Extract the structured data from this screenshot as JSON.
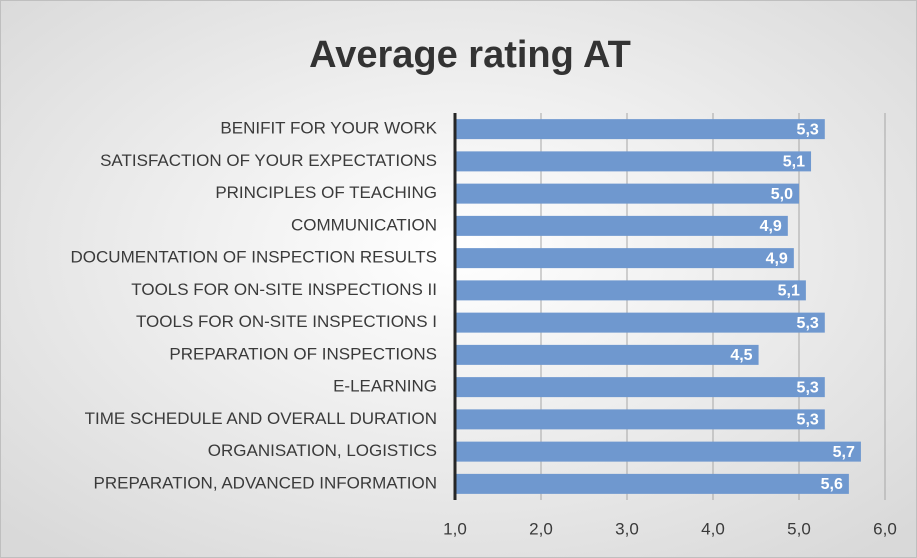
{
  "chart_data": {
    "type": "hbar",
    "title": "Average rating AT",
    "categories": [
      "BENIFIT FOR YOUR WORK",
      "SATISFACTION OF YOUR EXPECTATIONS",
      "PRINCIPLES OF TEACHING",
      "COMMUNICATION",
      "DOCUMENTATION OF INSPECTION RESULTS",
      "TOOLS FOR ON-SITE INSPECTIONS II",
      "TOOLS FOR ON-SITE INSPECTIONS I",
      "PREPARATION OF INSPECTIONS",
      "E-LEARNING",
      "TIME SCHEDULE AND OVERALL DURATION",
      "ORGANISATION, LOGISTICS",
      "PREPARATION, ADVANCED INFORMATION"
    ],
    "values": [
      5.3,
      5.14,
      5.0,
      4.87,
      4.94,
      5.08,
      5.3,
      4.53,
      5.3,
      5.3,
      5.72,
      5.58
    ],
    "value_labels": [
      "5,3",
      "5,1",
      "5,0",
      "4,9",
      "4,9",
      "5,1",
      "5,3",
      "4,5",
      "5,3",
      "5,3",
      "5,7",
      "5,6"
    ],
    "color": "#6f98cf",
    "xlim": [
      1,
      6
    ],
    "xticks": [
      {
        "value": 1,
        "label": "1,0"
      },
      {
        "value": 2,
        "label": "2,0"
      },
      {
        "value": 3,
        "label": "3,0"
      },
      {
        "value": 4,
        "label": "4,0"
      },
      {
        "value": 5,
        "label": "5,0"
      },
      {
        "value": 6,
        "label": "6,0"
      }
    ],
    "grid": true
  }
}
